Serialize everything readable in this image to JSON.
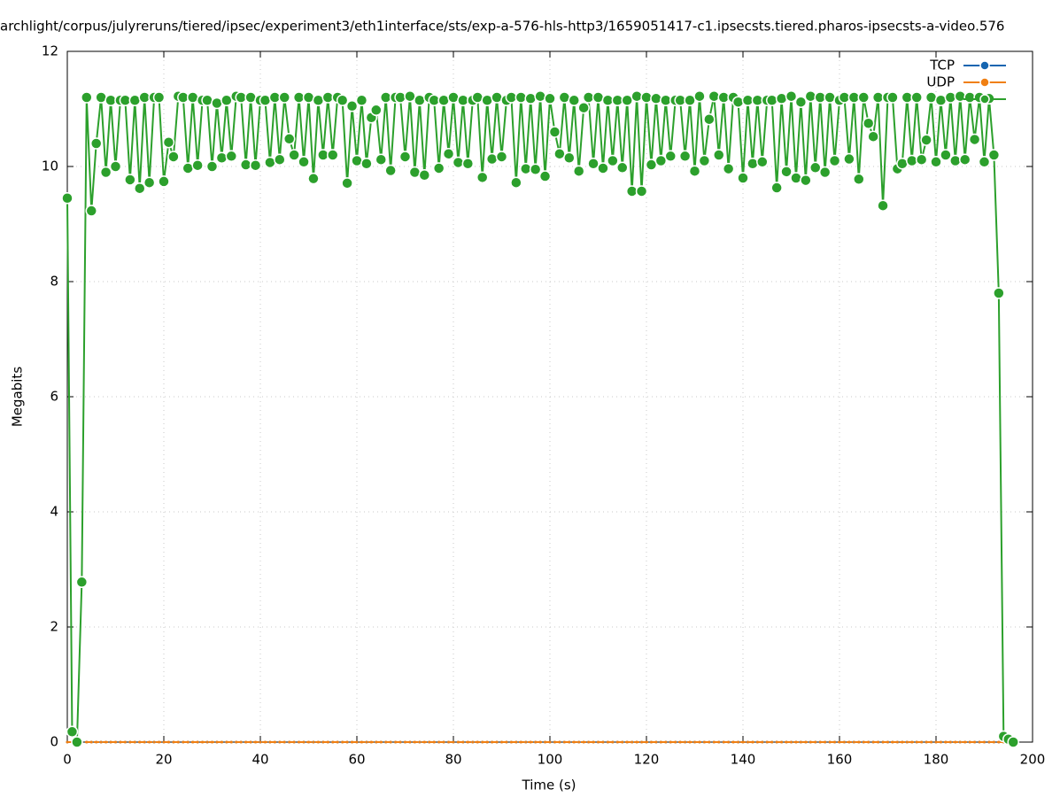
{
  "chart_data": {
    "type": "line",
    "title": "archlight/corpus/julyreruns/tiered/ipsec/experiment3/eth1interface/sts/exp-a-576-hls-http3/1659051417-c1.ipsecsts.tiered.pharos-ipsecsts-a-video.576",
    "x_label": "Time (s)",
    "y_label": "Megabits",
    "xlim": [
      0,
      200
    ],
    "xticks": [
      0,
      20,
      40,
      60,
      80,
      100,
      120,
      140,
      160,
      180,
      200
    ],
    "ylim": [
      0,
      12
    ],
    "yticks": [
      0,
      2,
      4,
      6,
      8,
      10,
      12
    ],
    "grid": true,
    "legend": "top-right",
    "x": [
      0,
      1,
      2,
      3,
      4,
      5,
      6,
      7,
      8,
      9,
      10,
      11,
      12,
      13,
      14,
      15,
      16,
      17,
      18,
      19,
      20,
      21,
      22,
      23,
      24,
      25,
      26,
      27,
      28,
      29,
      30,
      31,
      32,
      33,
      34,
      35,
      36,
      37,
      38,
      39,
      40,
      41,
      42,
      43,
      44,
      45,
      46,
      47,
      48,
      49,
      50,
      51,
      52,
      53,
      54,
      55,
      56,
      57,
      58,
      59,
      60,
      61,
      62,
      63,
      64,
      65,
      66,
      67,
      68,
      69,
      70,
      71,
      72,
      73,
      74,
      75,
      76,
      77,
      78,
      79,
      80,
      81,
      82,
      83,
      84,
      85,
      86,
      87,
      88,
      89,
      90,
      91,
      92,
      93,
      94,
      95,
      96,
      97,
      98,
      99,
      100,
      101,
      102,
      103,
      104,
      105,
      106,
      107,
      108,
      109,
      110,
      111,
      112,
      113,
      114,
      115,
      116,
      117,
      118,
      119,
      120,
      121,
      122,
      123,
      124,
      125,
      126,
      127,
      128,
      129,
      130,
      131,
      132,
      133,
      134,
      135,
      136,
      137,
      138,
      139,
      140,
      141,
      142,
      143,
      144,
      145,
      146,
      147,
      148,
      149,
      150,
      151,
      152,
      153,
      154,
      155,
      156,
      157,
      158,
      159,
      160,
      161,
      162,
      163,
      164,
      165,
      166,
      167,
      168,
      169,
      170,
      171,
      172,
      173,
      174,
      175,
      176,
      177,
      178,
      179,
      180,
      181,
      182,
      183,
      184,
      185,
      186,
      187,
      188,
      189,
      190,
      191,
      192,
      193,
      194,
      195,
      196
    ],
    "series": [
      {
        "name": "TCP",
        "color": "#1565b0",
        "values": [
          0,
          0,
          0,
          0,
          0,
          0,
          0,
          0,
          0,
          0,
          0,
          0,
          0,
          0,
          0,
          0,
          0,
          0,
          0,
          0,
          0,
          0,
          0,
          0,
          0,
          0,
          0,
          0,
          0,
          0,
          0,
          0,
          0,
          0,
          0,
          0,
          0,
          0,
          0,
          0,
          0,
          0,
          0,
          0,
          0,
          0,
          0,
          0,
          0,
          0,
          0,
          0,
          0,
          0,
          0,
          0,
          0,
          0,
          0,
          0,
          0,
          0,
          0,
          0,
          0,
          0,
          0,
          0,
          0,
          0,
          0,
          0,
          0,
          0,
          0,
          0,
          0,
          0,
          0,
          0,
          0,
          0,
          0,
          0,
          0,
          0,
          0,
          0,
          0,
          0,
          0,
          0,
          0,
          0,
          0,
          0,
          0,
          0,
          0,
          0,
          0,
          0,
          0,
          0,
          0,
          0,
          0,
          0,
          0,
          0,
          0,
          0,
          0,
          0,
          0,
          0,
          0,
          0,
          0,
          0,
          0,
          0,
          0,
          0,
          0,
          0,
          0,
          0,
          0,
          0,
          0,
          0,
          0,
          0,
          0,
          0,
          0,
          0,
          0,
          0,
          0,
          0,
          0,
          0,
          0,
          0,
          0,
          0,
          0,
          0,
          0,
          0,
          0,
          0,
          0,
          0,
          0,
          0,
          0,
          0,
          0,
          0,
          0,
          0,
          0,
          0,
          0,
          0,
          0,
          0,
          0,
          0,
          0,
          0,
          0,
          0,
          0,
          0,
          0,
          0,
          0,
          0,
          0,
          0,
          0,
          0,
          0,
          0,
          0,
          0,
          0,
          0,
          0,
          0,
          0,
          0,
          0
        ]
      },
      {
        "name": "UDP",
        "color": "#f07f12",
        "values": [
          0,
          0,
          0,
          0,
          0,
          0,
          0,
          0,
          0,
          0,
          0,
          0,
          0,
          0,
          0,
          0,
          0,
          0,
          0,
          0,
          0,
          0,
          0,
          0,
          0,
          0,
          0,
          0,
          0,
          0,
          0,
          0,
          0,
          0,
          0,
          0,
          0,
          0,
          0,
          0,
          0,
          0,
          0,
          0,
          0,
          0,
          0,
          0,
          0,
          0,
          0,
          0,
          0,
          0,
          0,
          0,
          0,
          0,
          0,
          0,
          0,
          0,
          0,
          0,
          0,
          0,
          0,
          0,
          0,
          0,
          0,
          0,
          0,
          0,
          0,
          0,
          0,
          0,
          0,
          0,
          0,
          0,
          0,
          0,
          0,
          0,
          0,
          0,
          0,
          0,
          0,
          0,
          0,
          0,
          0,
          0,
          0,
          0,
          0,
          0,
          0,
          0,
          0,
          0,
          0,
          0,
          0,
          0,
          0,
          0,
          0,
          0,
          0,
          0,
          0,
          0,
          0,
          0,
          0,
          0,
          0,
          0,
          0,
          0,
          0,
          0,
          0,
          0,
          0,
          0,
          0,
          0,
          0,
          0,
          0,
          0,
          0,
          0,
          0,
          0,
          0,
          0,
          0,
          0,
          0,
          0,
          0,
          0,
          0,
          0,
          0,
          0,
          0,
          0,
          0,
          0,
          0,
          0,
          0,
          0,
          0,
          0,
          0,
          0,
          0,
          0,
          0,
          0,
          0,
          0,
          0,
          0,
          0,
          0,
          0,
          0,
          0,
          0,
          0,
          0,
          0,
          0,
          0,
          0,
          0,
          0,
          0,
          0,
          0,
          0,
          0,
          0,
          0,
          0,
          0,
          0,
          0
        ]
      },
      {
        "color": "#2ca02c",
        "values": [
          9.45,
          0.18,
          0,
          2.78,
          11.2,
          9.23,
          10.4,
          11.2,
          9.9,
          11.15,
          10.0,
          11.15,
          11.15,
          9.77,
          11.15,
          9.62,
          11.2,
          9.72,
          11.2,
          11.2,
          9.74,
          10.42,
          10.17,
          11.22,
          11.2,
          9.97,
          11.2,
          10.02,
          11.15,
          11.15,
          10.0,
          11.1,
          10.15,
          11.15,
          10.18,
          11.22,
          11.2,
          10.03,
          11.2,
          10.02,
          11.15,
          11.15,
          10.07,
          11.2,
          10.12,
          11.2,
          10.48,
          10.2,
          11.2,
          10.08,
          11.2,
          9.79,
          11.15,
          10.2,
          11.2,
          10.2,
          11.2,
          11.15,
          9.71,
          11.05,
          10.1,
          11.15,
          10.05,
          10.85,
          10.98,
          10.12,
          11.2,
          9.93,
          11.2,
          11.2,
          10.17,
          11.22,
          9.9,
          11.15,
          9.85,
          11.2,
          11.15,
          9.97,
          11.15,
          10.22,
          11.2,
          10.07,
          11.15,
          10.05,
          11.15,
          11.2,
          9.81,
          11.15,
          10.13,
          11.2,
          10.17,
          11.15,
          11.2,
          9.72,
          11.2,
          9.96,
          11.18,
          9.95,
          11.22,
          9.83,
          11.18,
          10.6,
          10.22,
          11.2,
          10.15,
          11.15,
          9.92,
          11.02,
          11.2,
          10.05,
          11.2,
          9.97,
          11.15,
          10.1,
          11.15,
          9.98,
          11.15,
          9.57,
          11.22,
          9.57,
          11.2,
          10.03,
          11.18,
          10.1,
          11.15,
          10.18,
          11.15,
          11.15,
          10.18,
          11.15,
          9.92,
          11.22,
          10.1,
          10.82,
          11.22,
          10.2,
          11.2,
          9.96,
          11.2,
          11.12,
          9.8,
          11.15,
          10.05,
          11.15,
          10.08,
          11.15,
          11.15,
          9.63,
          11.18,
          9.91,
          11.22,
          9.8,
          11.12,
          9.76,
          11.22,
          9.98,
          11.2,
          9.9,
          11.2,
          10.1,
          11.15,
          11.2,
          10.13,
          11.2,
          9.78,
          11.2,
          10.75,
          10.52,
          11.2,
          9.32,
          11.2,
          11.2,
          9.96,
          10.05,
          11.2,
          10.1,
          11.2,
          10.12,
          10.46,
          11.2,
          10.08,
          11.15,
          10.2,
          11.2,
          10.1,
          11.22,
          10.12,
          11.2,
          10.47,
          11.2,
          10.08,
          11.18,
          10.2,
          7.8,
          0.1,
          0.05,
          0
        ]
      }
    ]
  }
}
